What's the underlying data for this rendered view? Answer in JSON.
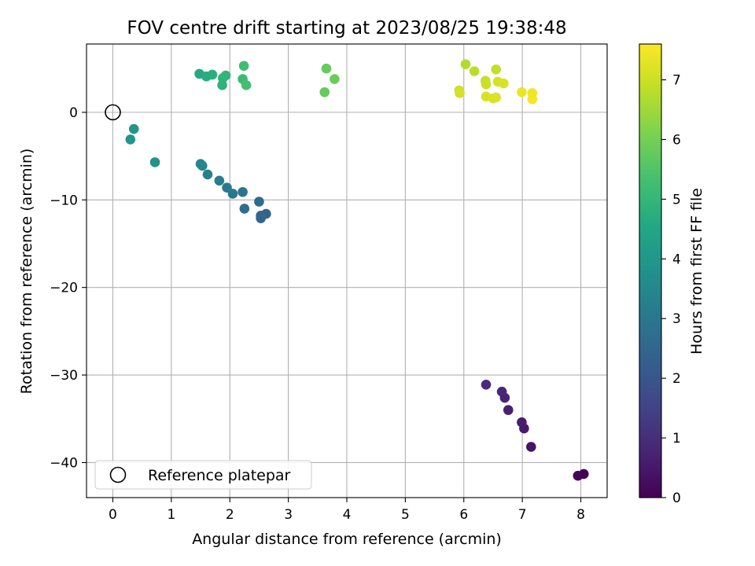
{
  "chart_data": {
    "type": "scatter",
    "title": "FOV centre drift starting at 2023/08/25 19:38:48",
    "xlabel": "Angular distance from reference (arcmin)",
    "ylabel": "Rotation from reference (arcmin)",
    "xlim": [
      -0.45,
      8.45
    ],
    "ylim": [
      -44.0,
      7.8
    ],
    "xticks": [
      0,
      1,
      2,
      3,
      4,
      5,
      6,
      7,
      8
    ],
    "yticks": [
      0,
      -10,
      -20,
      -30,
      -40
    ],
    "xtick_labels": [
      "0",
      "1",
      "2",
      "3",
      "4",
      "5",
      "6",
      "7",
      "8"
    ],
    "ytick_labels": [
      "0",
      "−10",
      "−20",
      "−30",
      "−40"
    ],
    "grid": true,
    "legend": {
      "position": "lower-left",
      "entries": [
        "Reference platepar"
      ]
    },
    "reference_point": {
      "x": 0,
      "y": 0
    },
    "colorbar": {
      "label": "Hours from first FF file",
      "range": [
        0,
        7.6
      ],
      "ticks": [
        0,
        1,
        2,
        3,
        4,
        5,
        6,
        7
      ],
      "tick_labels": [
        "0",
        "1",
        "2",
        "3",
        "4",
        "5",
        "6",
        "7"
      ],
      "colormap": "viridis"
    },
    "points": [
      {
        "x": 8.05,
        "y": -41.3,
        "c": 0.0
      },
      {
        "x": 7.95,
        "y": -41.5,
        "c": 0.1
      },
      {
        "x": 7.15,
        "y": -38.2,
        "c": 0.4
      },
      {
        "x": 7.03,
        "y": -36.1,
        "c": 0.55
      },
      {
        "x": 6.99,
        "y": -35.4,
        "c": 0.6
      },
      {
        "x": 6.76,
        "y": -34.0,
        "c": 0.7
      },
      {
        "x": 6.7,
        "y": -32.6,
        "c": 0.8
      },
      {
        "x": 6.65,
        "y": -31.9,
        "c": 0.85
      },
      {
        "x": 6.38,
        "y": -31.1,
        "c": 0.95
      },
      {
        "x": 2.62,
        "y": -11.6,
        "c": 2.4
      },
      {
        "x": 2.53,
        "y": -11.8,
        "c": 2.45
      },
      {
        "x": 2.53,
        "y": -12.1,
        "c": 2.5
      },
      {
        "x": 2.5,
        "y": -10.2,
        "c": 2.6
      },
      {
        "x": 2.25,
        "y": -11.0,
        "c": 2.7
      },
      {
        "x": 2.22,
        "y": -9.1,
        "c": 2.85
      },
      {
        "x": 2.05,
        "y": -9.3,
        "c": 2.95
      },
      {
        "x": 1.95,
        "y": -8.6,
        "c": 3.05
      },
      {
        "x": 1.82,
        "y": -7.8,
        "c": 3.15
      },
      {
        "x": 1.62,
        "y": -7.1,
        "c": 3.3
      },
      {
        "x": 1.53,
        "y": -6.1,
        "c": 3.45
      },
      {
        "x": 1.5,
        "y": -5.9,
        "c": 3.5
      },
      {
        "x": 0.72,
        "y": -5.7,
        "c": 3.85
      },
      {
        "x": 0.3,
        "y": -3.1,
        "c": 3.95
      },
      {
        "x": 0.36,
        "y": -1.9,
        "c": 4.0
      },
      {
        "x": 1.48,
        "y": 4.4,
        "c": 4.6
      },
      {
        "x": 1.6,
        "y": 4.1,
        "c": 4.7
      },
      {
        "x": 1.7,
        "y": 4.3,
        "c": 4.75
      },
      {
        "x": 1.87,
        "y": 3.1,
        "c": 4.85
      },
      {
        "x": 1.88,
        "y": 3.9,
        "c": 4.9
      },
      {
        "x": 1.93,
        "y": 4.2,
        "c": 4.95
      },
      {
        "x": 2.22,
        "y": 3.8,
        "c": 5.15
      },
      {
        "x": 2.24,
        "y": 5.3,
        "c": 5.25
      },
      {
        "x": 2.28,
        "y": 3.1,
        "c": 5.3
      },
      {
        "x": 3.62,
        "y": 2.3,
        "c": 5.8
      },
      {
        "x": 3.65,
        "y": 5.0,
        "c": 5.8
      },
      {
        "x": 3.79,
        "y": 3.8,
        "c": 5.85
      },
      {
        "x": 6.03,
        "y": 5.5,
        "c": 6.7
      },
      {
        "x": 6.18,
        "y": 4.7,
        "c": 6.8
      },
      {
        "x": 5.92,
        "y": 2.5,
        "c": 7.05
      },
      {
        "x": 5.93,
        "y": 2.2,
        "c": 7.1
      },
      {
        "x": 6.37,
        "y": 3.6,
        "c": 6.95
      },
      {
        "x": 6.38,
        "y": 3.2,
        "c": 7.0
      },
      {
        "x": 6.38,
        "y": 1.8,
        "c": 7.15
      },
      {
        "x": 6.5,
        "y": 1.6,
        "c": 7.2
      },
      {
        "x": 6.55,
        "y": 4.9,
        "c": 6.9
      },
      {
        "x": 6.55,
        "y": 1.7,
        "c": 7.2
      },
      {
        "x": 6.58,
        "y": 3.5,
        "c": 7.1
      },
      {
        "x": 6.68,
        "y": 3.3,
        "c": 7.15
      },
      {
        "x": 6.99,
        "y": 2.3,
        "c": 7.4
      },
      {
        "x": 7.17,
        "y": 2.2,
        "c": 7.45
      },
      {
        "x": 7.17,
        "y": 1.5,
        "c": 7.5
      }
    ]
  }
}
